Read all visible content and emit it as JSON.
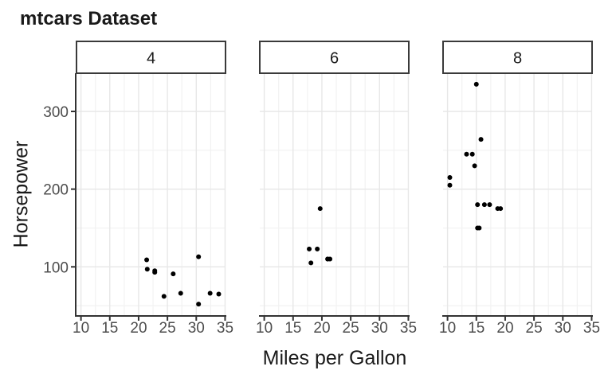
{
  "chart_data": {
    "type": "scatter",
    "title": "mtcars Dataset",
    "xlabel": "Miles per Gallon",
    "ylabel": "Horsepower",
    "grid": true,
    "legend_position": "none",
    "xlim": [
      9.225,
      35.075
    ],
    "ylim": [
      37.85,
      349.15
    ],
    "x_ticks": [
      10,
      15,
      20,
      25,
      30,
      35
    ],
    "x_minor_ticks": [
      12.5,
      17.5,
      22.5,
      27.5,
      32.5
    ],
    "y_ticks": [
      100,
      200,
      300
    ],
    "y_minor_ticks": [
      50,
      150,
      250
    ],
    "facets": [
      {
        "label": "4",
        "points": [
          [
            22.8,
            93
          ],
          [
            24.4,
            62
          ],
          [
            22.8,
            95
          ],
          [
            32.4,
            66
          ],
          [
            30.4,
            52
          ],
          [
            33.9,
            65
          ],
          [
            21.5,
            97
          ],
          [
            27.3,
            66
          ],
          [
            26.0,
            91
          ],
          [
            30.4,
            113
          ],
          [
            21.4,
            109
          ]
        ]
      },
      {
        "label": "6",
        "points": [
          [
            21.0,
            110
          ],
          [
            21.0,
            110
          ],
          [
            21.4,
            110
          ],
          [
            18.1,
            105
          ],
          [
            19.2,
            123
          ],
          [
            17.8,
            123
          ],
          [
            19.7,
            175
          ]
        ]
      },
      {
        "label": "8",
        "points": [
          [
            18.7,
            175
          ],
          [
            14.3,
            245
          ],
          [
            16.4,
            180
          ],
          [
            17.3,
            180
          ],
          [
            15.2,
            180
          ],
          [
            10.4,
            205
          ],
          [
            10.4,
            215
          ],
          [
            14.7,
            230
          ],
          [
            15.5,
            150
          ],
          [
            15.2,
            150
          ],
          [
            13.3,
            245
          ],
          [
            19.2,
            175
          ],
          [
            15.8,
            264
          ],
          [
            15.0,
            335
          ]
        ]
      }
    ]
  },
  "colors": {
    "background": "#ffffff",
    "panel_background": "#ffffff",
    "grid_major": "#e7e7e7",
    "grid_minor": "#f2f2f2",
    "axis_line": "#333333",
    "tick_mark": "#333333",
    "tick_label": "#4d4d4d",
    "title_text": "#1a1a1a",
    "strip_border": "#3a3a3a",
    "strip_background": "#ffffff",
    "strip_text": "#1a1a1a",
    "point": "#000000"
  }
}
